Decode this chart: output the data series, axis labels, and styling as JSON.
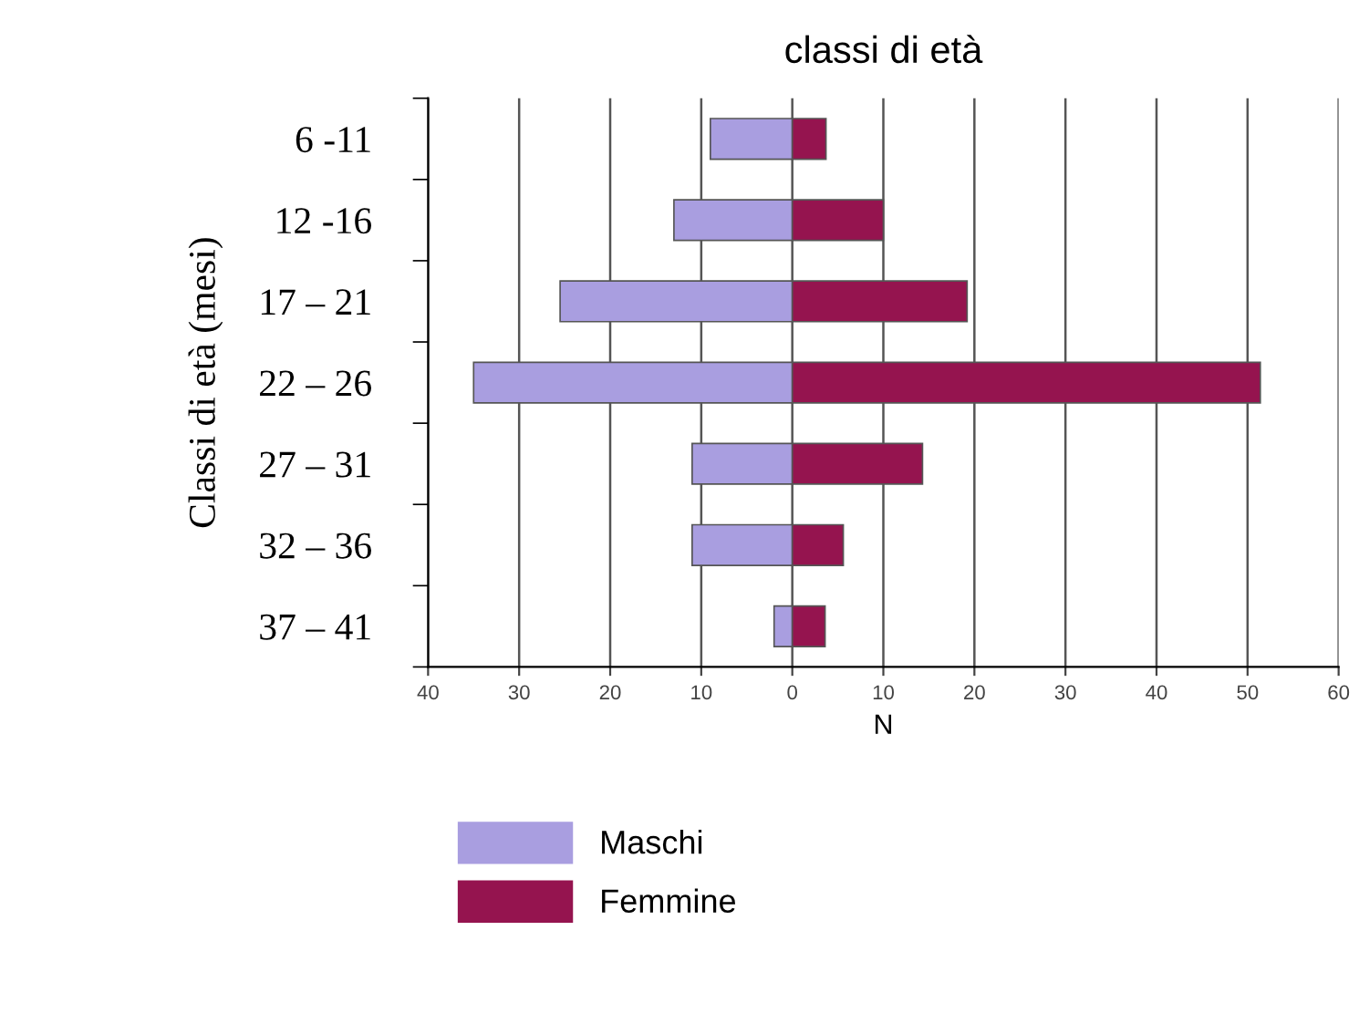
{
  "chart_data": {
    "type": "bar",
    "orientation": "horizontal",
    "title": "classi di età",
    "xlabel": "N",
    "ylabel": "Classi di età (mesi)",
    "categories": [
      "6 -11",
      "12 -16",
      "17 – 21",
      "22 – 26",
      "27 – 31",
      "32 – 36",
      "37 – 41"
    ],
    "series": [
      {
        "name": "Maschi",
        "color": "#a99ee0",
        "values": [
          -9,
          -13,
          -25.5,
          -35,
          -11,
          -11,
          -2
        ]
      },
      {
        "name": "Femmine",
        "color": "#95144f",
        "values": [
          3.7,
          10,
          19.2,
          51.4,
          14.3,
          5.6,
          3.6
        ]
      }
    ],
    "xlim": [
      -40,
      60
    ],
    "xticks": [
      {
        "value": -40,
        "label": "40"
      },
      {
        "value": -30,
        "label": "30"
      },
      {
        "value": -20,
        "label": "20"
      },
      {
        "value": -10,
        "label": "10"
      },
      0,
      10,
      20,
      30,
      40,
      50,
      60
    ],
    "grid": "x",
    "legend": "bottom",
    "stacked": true
  }
}
